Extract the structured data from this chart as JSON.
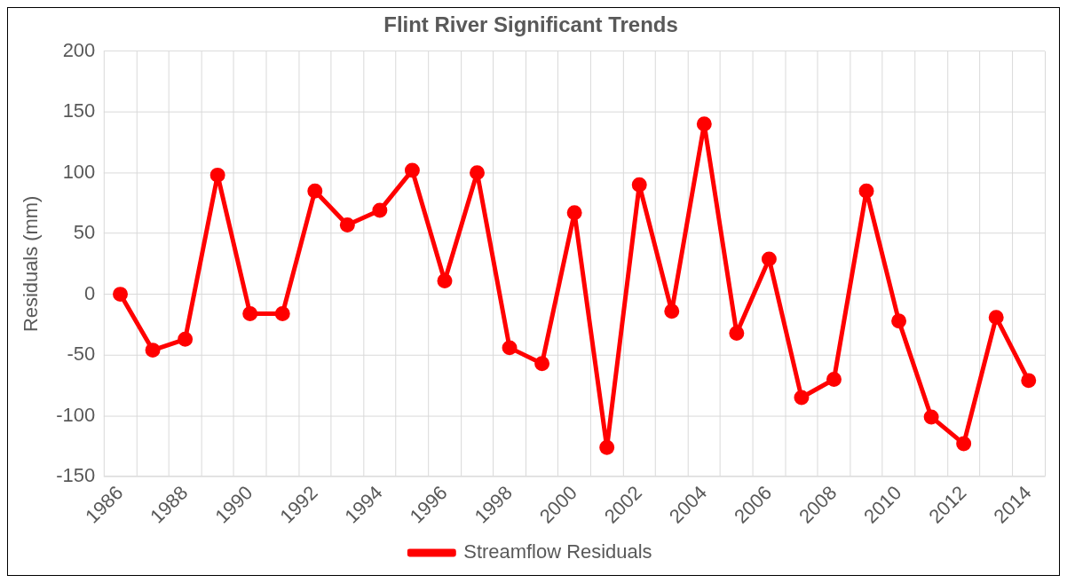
{
  "chart_data": {
    "type": "line",
    "title": "Flint River Significant Trends",
    "ylabel": "Residuals (mm)",
    "categories": [
      "1986",
      null,
      "1988",
      null,
      "1990",
      null,
      "1992",
      null,
      "1994",
      null,
      "1996",
      null,
      "1998",
      null,
      "2000",
      null,
      "2002",
      null,
      "2004",
      null,
      "2006",
      null,
      "2008",
      null,
      "2010",
      null,
      "2012",
      null,
      "2014"
    ],
    "series": [
      {
        "name": "Streamflow Residuals",
        "color": "#ff0000",
        "values": [
          0,
          -46,
          -37,
          98,
          -16,
          -16,
          85,
          57,
          69,
          102,
          11,
          100,
          -44,
          -57,
          67,
          -126,
          90,
          -14,
          140,
          -32,
          29,
          -85,
          -70,
          85,
          -22,
          -101,
          -123,
          -19,
          -71
        ]
      }
    ],
    "ylim": [
      -150,
      200
    ],
    "yticks": [
      -150,
      -100,
      -50,
      0,
      50,
      100,
      150,
      200
    ],
    "grid": true,
    "legend": "bottom",
    "marker": "circle",
    "line_style": "solid"
  }
}
